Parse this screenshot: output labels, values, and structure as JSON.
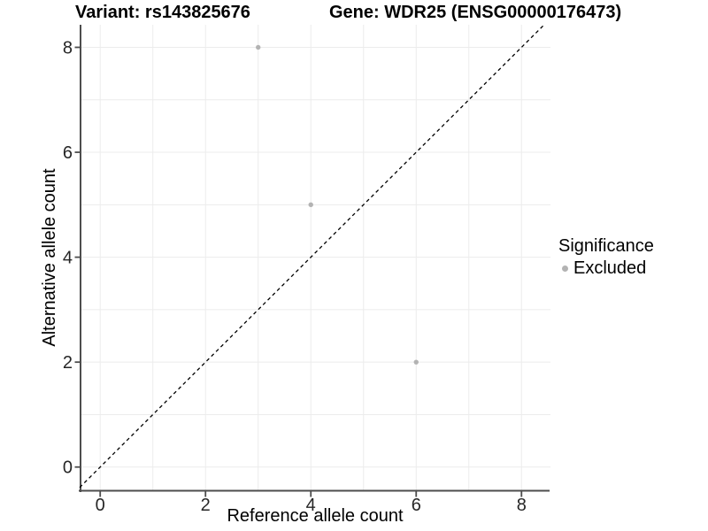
{
  "chart_data": {
    "type": "scatter",
    "titles": {
      "left": "Variant: rs143825676",
      "right": "Gene: WDR25 (ENSG00000176473)"
    },
    "xlabel": "Reference allele count",
    "ylabel": "Alternative allele count",
    "x_ticks": [
      0,
      2,
      4,
      6,
      8
    ],
    "y_ticks": [
      0,
      2,
      4,
      6,
      8
    ],
    "xlim": [
      -0.39,
      8.55
    ],
    "ylim": [
      -0.46,
      8.43
    ],
    "grid": {
      "interval": 1,
      "from": 0,
      "to": 8
    },
    "series": [
      {
        "name": "Excluded",
        "color": "#b3b3b3",
        "points": [
          {
            "x": 3,
            "y": 8
          },
          {
            "x": 4,
            "y": 5
          },
          {
            "x": 6,
            "y": 2
          }
        ]
      }
    ],
    "identity_line": {
      "style": "dashed",
      "color": "#000000"
    },
    "legend": {
      "title": "Significance",
      "position": "right",
      "items": [
        {
          "label": "Excluded",
          "color": "#b3b3b3"
        }
      ]
    }
  },
  "colors": {
    "background": "#ffffff",
    "grid": "#ececec",
    "axis": "#4d4d4d",
    "tick_text": "#262626",
    "point": "#b3b3b3"
  }
}
